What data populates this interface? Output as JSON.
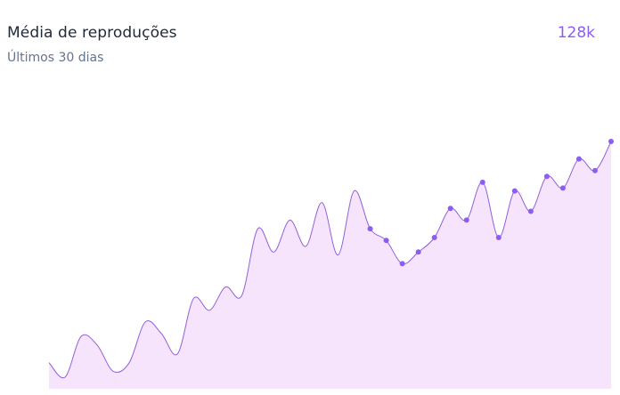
{
  "header": {
    "title": "Média de reproduções",
    "subtitle": "Últimos 30 dias",
    "value": "128k"
  },
  "colors": {
    "accent": "#8b5cf6",
    "line": "#9061d9",
    "fill": "#f5e4fb",
    "title": "#1f2937",
    "subtitle": "#64748b"
  },
  "chart_data": {
    "type": "area",
    "title": "",
    "xlabel": "",
    "ylabel": "",
    "ylim": [
      0,
      100
    ],
    "grid": false,
    "smooth": true,
    "x": [
      1,
      2,
      3,
      4,
      5,
      6,
      7,
      8,
      9,
      10,
      11,
      12,
      13,
      14,
      15,
      16,
      17,
      18,
      19,
      20,
      21,
      22,
      23,
      24,
      25,
      26,
      27,
      28,
      29,
      30,
      31,
      32,
      33,
      34,
      35,
      36
    ],
    "values": [
      9,
      4,
      18,
      15,
      6,
      9,
      23,
      19,
      12,
      31,
      27,
      35,
      32,
      55,
      47,
      58,
      49,
      64,
      46,
      68,
      55,
      51,
      43,
      47,
      52,
      62,
      58,
      71,
      52,
      68,
      61,
      73,
      69,
      79,
      75,
      85
    ],
    "markers_from_index": 20
  }
}
